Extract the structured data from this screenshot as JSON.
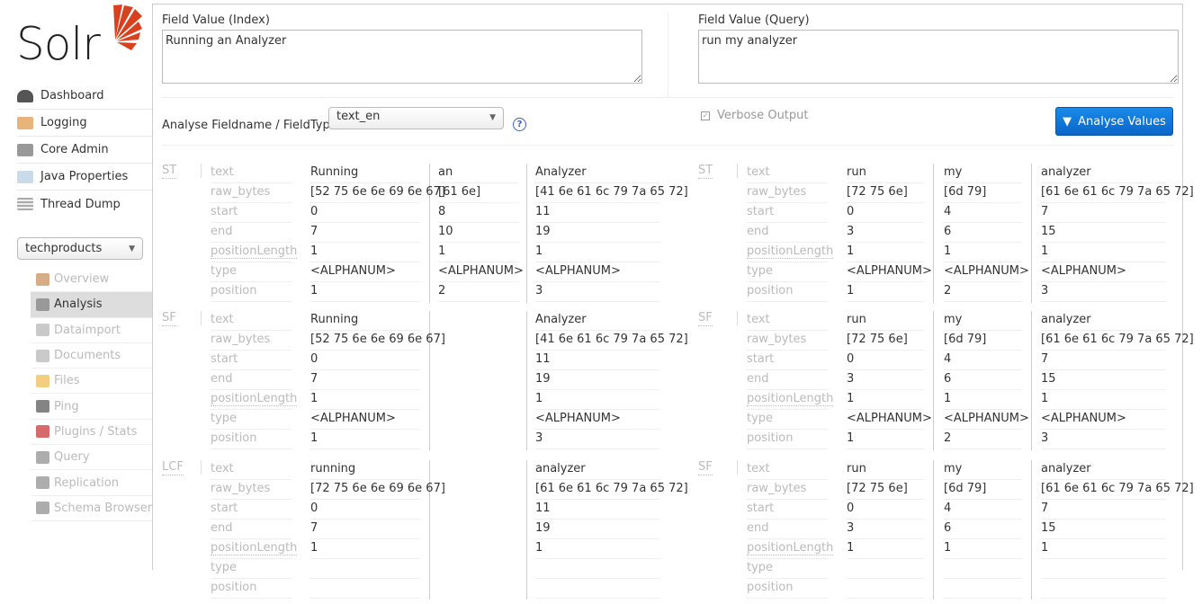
{
  "logo": {
    "text": "Solr",
    "brand_color": "#d9411e"
  },
  "sidebar": {
    "items": [
      {
        "label": "Dashboard",
        "icon": "dashboard-icon"
      },
      {
        "label": "Logging",
        "icon": "logging-icon"
      },
      {
        "label": "Core Admin",
        "icon": "core-admin-icon"
      },
      {
        "label": "Java Properties",
        "icon": "java-properties-icon"
      },
      {
        "label": "Thread Dump",
        "icon": "thread-dump-icon"
      }
    ],
    "core_selector": "techproducts",
    "core_items": [
      {
        "label": "Overview",
        "icon": "home-icon"
      },
      {
        "label": "Analysis",
        "icon": "funnel-icon",
        "active": true
      },
      {
        "label": "Dataimport",
        "icon": "dataimport-icon"
      },
      {
        "label": "Documents",
        "icon": "documents-icon"
      },
      {
        "label": "Files",
        "icon": "files-icon"
      },
      {
        "label": "Ping",
        "icon": "ping-icon"
      },
      {
        "label": "Plugins / Stats",
        "icon": "plugins-icon"
      },
      {
        "label": "Query",
        "icon": "query-icon"
      },
      {
        "label": "Replication",
        "icon": "replication-icon"
      },
      {
        "label": "Schema Browser",
        "icon": "schema-browser-icon"
      }
    ]
  },
  "form": {
    "index_label": "Field Value (Index)",
    "index_value": "Running an Analyzer",
    "query_label": "Field Value (Query)",
    "query_value": "run my analyzer",
    "fieldtype_label": "Analyse Fieldname / FieldType:",
    "fieldtype_value": "text_en",
    "help": "?",
    "verbose_label": "Verbose Output",
    "verbose_checked": true,
    "analyse_button": "Analyse Values",
    "accent": "#1a7fdf"
  },
  "row_labels": [
    "text",
    "raw_bytes",
    "start",
    "end",
    "positionLength",
    "type",
    "position"
  ],
  "index": {
    "stages": [
      {
        "abbr": "ST",
        "tokens": [
          [
            "Running",
            "[52 75 6e 6e 69 6e 67]",
            "0",
            "7",
            "1",
            "<ALPHANUM>",
            "1"
          ],
          [
            "an",
            "[61 6e]",
            "8",
            "10",
            "1",
            "<ALPHANUM>",
            "2"
          ],
          [
            "Analyzer",
            "[41 6e 61 6c 79 7a 65 72]",
            "11",
            "19",
            "1",
            "<ALPHANUM>",
            "3"
          ]
        ]
      },
      {
        "abbr": "SF",
        "tokens": [
          [
            "Running",
            "[52 75 6e 6e 69 6e 67]",
            "0",
            "7",
            "1",
            "<ALPHANUM>",
            "1"
          ],
          null,
          [
            "Analyzer",
            "[41 6e 61 6c 79 7a 65 72]",
            "11",
            "19",
            "1",
            "<ALPHANUM>",
            "3"
          ]
        ]
      },
      {
        "abbr": "LCF",
        "tokens": [
          [
            "running",
            "[72 75 6e 6e 69 6e 67]",
            "0",
            "7",
            "1",
            "",
            ""
          ],
          null,
          [
            "analyzer",
            "[61 6e 61 6c 79 7a 65 72]",
            "11",
            "19",
            "1",
            "",
            ""
          ]
        ]
      }
    ]
  },
  "query": {
    "stages": [
      {
        "abbr": "ST",
        "tokens": [
          [
            "run",
            "[72 75 6e]",
            "0",
            "3",
            "1",
            "<ALPHANUM>",
            "1"
          ],
          [
            "my",
            "[6d 79]",
            "4",
            "6",
            "1",
            "<ALPHANUM>",
            "2"
          ],
          [
            "analyzer",
            "[61 6e 61 6c 79 7a 65 72]",
            "7",
            "15",
            "1",
            "<ALPHANUM>",
            "3"
          ]
        ]
      },
      {
        "abbr": "SF",
        "tokens": [
          [
            "run",
            "[72 75 6e]",
            "0",
            "3",
            "1",
            "<ALPHANUM>",
            "1"
          ],
          [
            "my",
            "[6d 79]",
            "4",
            "6",
            "1",
            "<ALPHANUM>",
            "2"
          ],
          [
            "analyzer",
            "[61 6e 61 6c 79 7a 65 72]",
            "7",
            "15",
            "1",
            "<ALPHANUM>",
            "3"
          ]
        ]
      },
      {
        "abbr": "SF",
        "tokens": [
          [
            "run",
            "[72 75 6e]",
            "0",
            "3",
            "1",
            "",
            ""
          ],
          [
            "my",
            "[6d 79]",
            "4",
            "6",
            "1",
            "",
            ""
          ],
          [
            "analyzer",
            "[61 6e 61 6c 79 7a 65 72]",
            "7",
            "15",
            "1",
            "",
            ""
          ]
        ]
      }
    ]
  }
}
